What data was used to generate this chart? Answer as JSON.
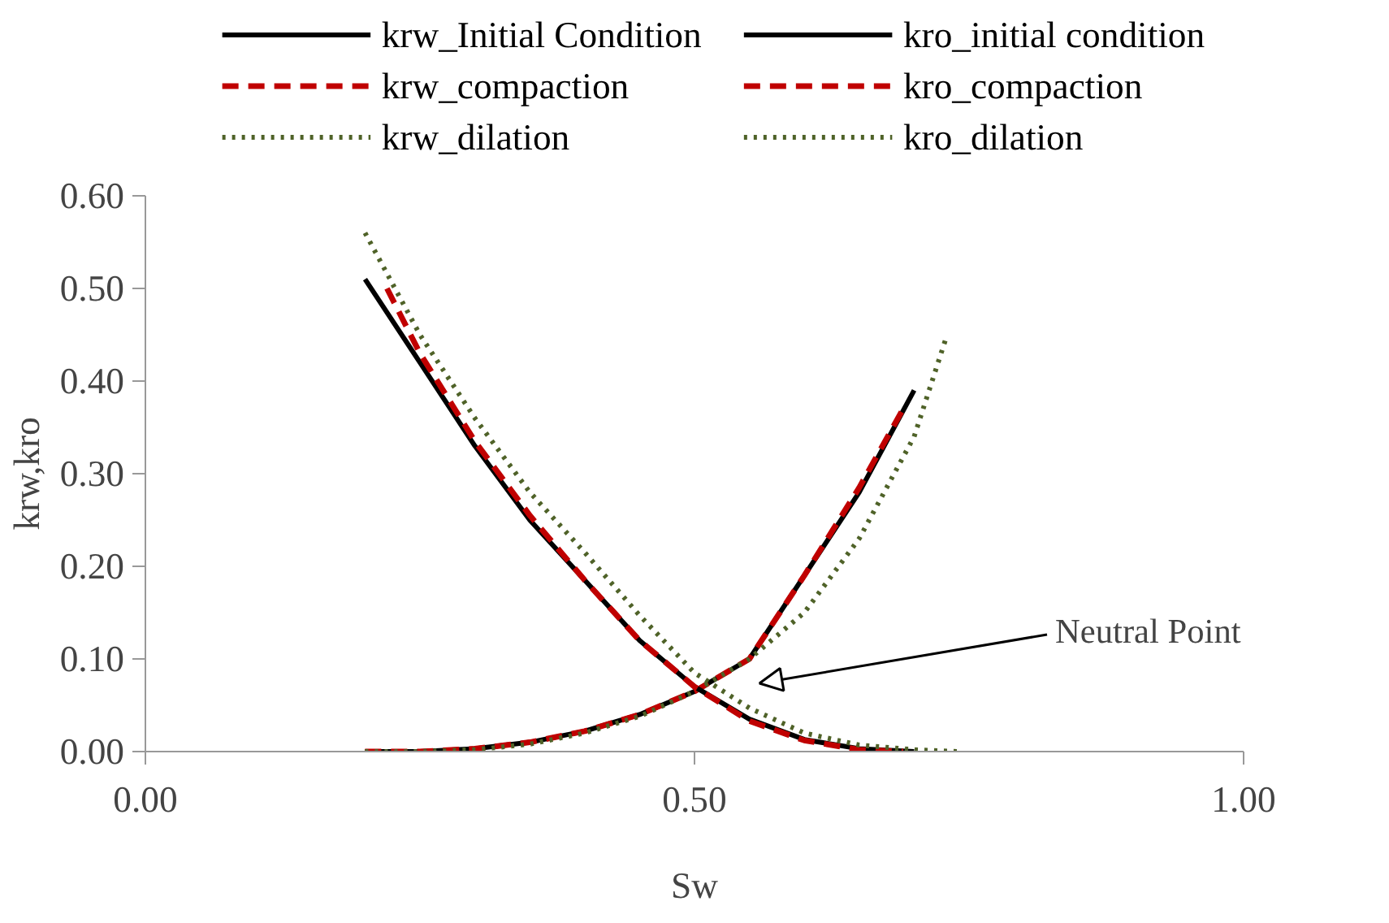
{
  "chart_data": {
    "type": "line",
    "xlabel": "Sw",
    "ylabel": "krw,kro",
    "xlim": [
      0,
      1
    ],
    "xticks": [
      {
        "value": 0,
        "label": "0.00"
      },
      {
        "value": 0.5,
        "label": "0.50"
      },
      {
        "value": 1,
        "label": "1.00"
      }
    ],
    "ylim": [
      0,
      0.6
    ],
    "yticks": [
      {
        "value": 0,
        "label": "0.00"
      },
      {
        "value": 0.1,
        "label": "0.10"
      },
      {
        "value": 0.2,
        "label": "0.20"
      },
      {
        "value": 0.3,
        "label": "0.30"
      },
      {
        "value": 0.4,
        "label": "0.40"
      },
      {
        "value": 0.5,
        "label": "0.50"
      },
      {
        "value": 0.6,
        "label": "0.60"
      }
    ],
    "grid": false,
    "legend": "top",
    "marker": "none",
    "annotations": [
      "Neutral Point"
    ],
    "series": [
      {
        "name": "krw_Initial Condition",
        "color": "#000000",
        "line_style": "solid",
        "x": [
          0.2,
          0.25,
          0.3,
          0.35,
          0.4,
          0.45,
          0.5,
          0.55,
          0.6,
          0.65,
          0.7
        ],
        "values": [
          0,
          0,
          0.003,
          0.01,
          0.022,
          0.04,
          0.065,
          0.1,
          0.19,
          0.28,
          0.39
        ]
      },
      {
        "name": "krw_compaction",
        "color": "#c00000",
        "line_style": "dashed",
        "x": [
          0.2,
          0.25,
          0.3,
          0.35,
          0.4,
          0.45,
          0.5,
          0.55,
          0.6,
          0.65,
          0.69
        ],
        "values": [
          0,
          0,
          0.003,
          0.01,
          0.022,
          0.04,
          0.065,
          0.1,
          0.19,
          0.285,
          0.37
        ]
      },
      {
        "name": "krw_dilation",
        "color": "#4f6228",
        "line_style": "dotted",
        "x": [
          0.2,
          0.25,
          0.3,
          0.35,
          0.4,
          0.45,
          0.5,
          0.55,
          0.6,
          0.65,
          0.7,
          0.73
        ],
        "values": [
          0,
          0,
          0.002,
          0.008,
          0.02,
          0.038,
          0.065,
          0.1,
          0.15,
          0.23,
          0.34,
          0.45
        ]
      },
      {
        "name": "kro_initial condition",
        "color": "#000000",
        "line_style": "solid",
        "x": [
          0.2,
          0.25,
          0.3,
          0.35,
          0.4,
          0.45,
          0.5,
          0.55,
          0.6,
          0.65,
          0.7
        ],
        "values": [
          0.51,
          0.42,
          0.33,
          0.25,
          0.185,
          0.12,
          0.07,
          0.035,
          0.013,
          0.003,
          0
        ]
      },
      {
        "name": "kro_compaction",
        "color": "#c00000",
        "line_style": "dashed",
        "x": [
          0.22,
          0.25,
          0.3,
          0.35,
          0.4,
          0.45,
          0.5,
          0.55,
          0.6,
          0.65,
          0.69
        ],
        "values": [
          0.5,
          0.43,
          0.335,
          0.255,
          0.185,
          0.12,
          0.07,
          0.033,
          0.012,
          0.002,
          0
        ]
      },
      {
        "name": "kro_dilation",
        "color": "#4f6228",
        "line_style": "dotted",
        "x": [
          0.2,
          0.25,
          0.3,
          0.35,
          0.4,
          0.45,
          0.5,
          0.55,
          0.6,
          0.65,
          0.7,
          0.74
        ],
        "values": [
          0.56,
          0.45,
          0.36,
          0.28,
          0.215,
          0.147,
          0.085,
          0.047,
          0.02,
          0.007,
          0.002,
          0
        ]
      }
    ]
  }
}
